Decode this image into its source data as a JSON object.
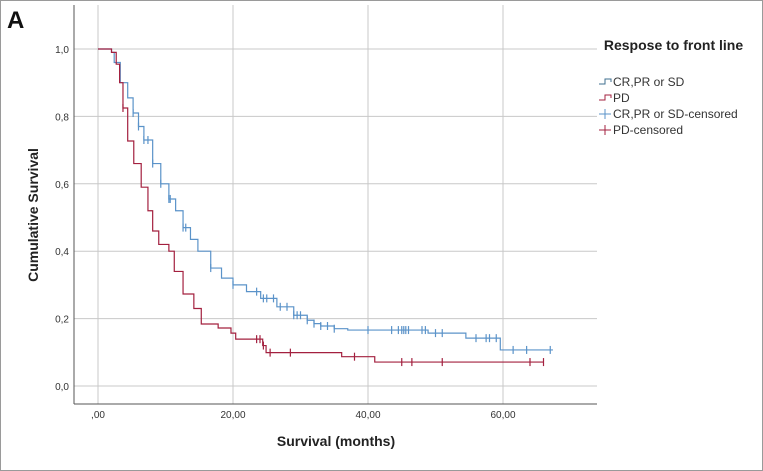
{
  "chart_data": {
    "type": "line",
    "panel_label": "A",
    "title": "",
    "xlabel": "Survival (months)",
    "ylabel": "Cumulative Survival",
    "xlim": [
      -3.5,
      74
    ],
    "ylim": [
      -0.05,
      1.05
    ],
    "x_ticks": [
      0,
      20,
      40,
      60
    ],
    "x_tick_labels": [
      ",00",
      "20,00",
      "40,00",
      "60,00"
    ],
    "y_ticks": [
      0,
      0.2,
      0.4,
      0.6,
      0.8,
      1.0
    ],
    "y_tick_labels": [
      "0,0",
      "0,2",
      "0,4",
      "0,6",
      "0,8",
      "1,0"
    ],
    "grid": true,
    "legend": {
      "title": "Respose to front line",
      "placement": "right",
      "entries": [
        "CR,PR or SD",
        "PD",
        "CR,PR or SD-censored",
        "PD-censored"
      ]
    },
    "series": [
      {
        "name": "CR,PR or SD",
        "color": "#5b93c9",
        "steps": [
          [
            0,
            1.0
          ],
          [
            2,
            0.99
          ],
          [
            2.4,
            0.96
          ],
          [
            3.3,
            0.9
          ],
          [
            4.4,
            0.855
          ],
          [
            5.2,
            0.81
          ],
          [
            6,
            0.77
          ],
          [
            6.8,
            0.73
          ],
          [
            8.1,
            0.66
          ],
          [
            9.3,
            0.6
          ],
          [
            10.5,
            0.555
          ],
          [
            11.5,
            0.52
          ],
          [
            12.6,
            0.47
          ],
          [
            13.7,
            0.435
          ],
          [
            14.8,
            0.4
          ],
          [
            16.7,
            0.35
          ],
          [
            18.3,
            0.32
          ],
          [
            20,
            0.3
          ],
          [
            22,
            0.28
          ],
          [
            24.1,
            0.26
          ],
          [
            26.5,
            0.235
          ],
          [
            29,
            0.21
          ],
          [
            31,
            0.195
          ],
          [
            32,
            0.185
          ],
          [
            33,
            0.178
          ],
          [
            35,
            0.17
          ],
          [
            37,
            0.166
          ],
          [
            48.9,
            0.157
          ],
          [
            54.5,
            0.142
          ],
          [
            59.6,
            0.107
          ]
        ],
        "end": 67.4,
        "censored": [
          5.2,
          6,
          6.8,
          7.4,
          8.1,
          9.3,
          10.5,
          10.7,
          12.6,
          13,
          16.7,
          20,
          23.5,
          24.5,
          25,
          26,
          27,
          28,
          29,
          29.5,
          30,
          31,
          32,
          33,
          34,
          35,
          40,
          43.5,
          44.5,
          45,
          45.3,
          45.6,
          46,
          48,
          48.5,
          50,
          51,
          56,
          57.5,
          58,
          59,
          61.5,
          63.5,
          67
        ]
      },
      {
        "name": "PD",
        "color": "#a3203f",
        "steps": [
          [
            0,
            1.0
          ],
          [
            2,
            0.99
          ],
          [
            2.7,
            0.955
          ],
          [
            3.2,
            0.9
          ],
          [
            3.7,
            0.825
          ],
          [
            4.4,
            0.727
          ],
          [
            5.3,
            0.66
          ],
          [
            6.4,
            0.59
          ],
          [
            7.4,
            0.52
          ],
          [
            8.1,
            0.46
          ],
          [
            9,
            0.42
          ],
          [
            10.5,
            0.4
          ],
          [
            11.3,
            0.34
          ],
          [
            12.6,
            0.273
          ],
          [
            14.2,
            0.23
          ],
          [
            15.3,
            0.184
          ],
          [
            17.8,
            0.172
          ],
          [
            19.7,
            0.157
          ],
          [
            20.4,
            0.139
          ],
          [
            24.4,
            0.12
          ],
          [
            24.9,
            0.099
          ],
          [
            36.1,
            0.087
          ],
          [
            41,
            0.071
          ]
        ],
        "end": 66,
        "censored": [
          3.7,
          23.5,
          24,
          24.5,
          25.5,
          28.5,
          38,
          45,
          46.5,
          51,
          64,
          66
        ]
      }
    ]
  }
}
